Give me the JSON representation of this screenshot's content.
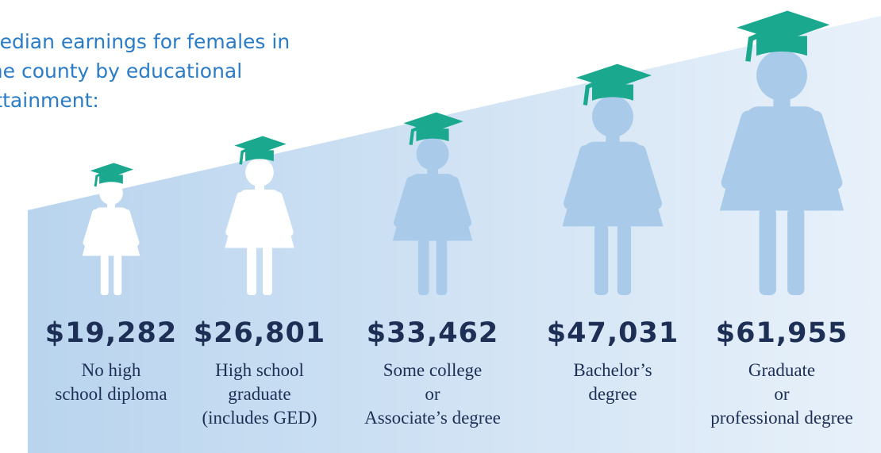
{
  "chart_data": {
    "type": "pictogram",
    "title": "Median earnings for females in the county by educational attainment:",
    "categories": [
      "No high\nschool diploma",
      "High school\ngraduate\n(includes GED)",
      "Some college\nor\nAssociate’s degree",
      "Bachelor’s\ndegree",
      "Graduate\nor\nprofessional degree"
    ],
    "values": [
      19282,
      26801,
      33462,
      47031,
      61955
    ],
    "value_labels": [
      "$19,282",
      "$26,801",
      "$33,462",
      "$47,031",
      "$61,955"
    ],
    "colors": [
      "#ffffff",
      "#ffffff",
      "#a9cbe9",
      "#a9cbe9",
      "#a9cbe9"
    ],
    "cap_color": "#1aa88f"
  }
}
